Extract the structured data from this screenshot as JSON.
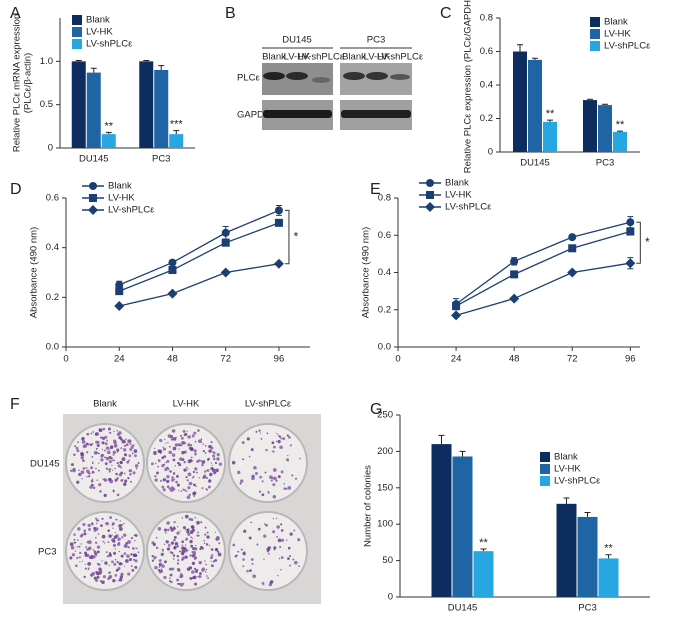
{
  "chart_data": [
    {
      "type": "bar",
      "panel": "A",
      "ylabel": [
        "Relative PLCε mRNA expression",
        "(PLCε/β-actin)"
      ],
      "categories": [
        "DU145",
        "PC3"
      ],
      "series": [
        {
          "name": "Blank",
          "color": "#0d2d5e",
          "values": [
            1.0,
            1.0
          ],
          "errors": [
            0.01,
            0.01
          ]
        },
        {
          "name": "LV-HK",
          "color": "#1f64a5",
          "values": [
            0.87,
            0.9
          ],
          "errors": [
            0.05,
            0.05
          ]
        },
        {
          "name": "LV-shPLCε",
          "color": "#27a7e1",
          "values": [
            0.16,
            0.16
          ],
          "errors": [
            0.02,
            0.04
          ]
        }
      ],
      "annotations": [
        {
          "text": "**",
          "category": 0,
          "series": 2
        },
        {
          "text": "***",
          "category": 1,
          "series": 2
        }
      ],
      "ylim": [
        0,
        1.5
      ],
      "yticks": [
        0,
        0.5,
        {
          "value": 1,
          "label": "1.0"
        }
      ]
    },
    {
      "type": "bar",
      "panel": "C",
      "ylabel": [
        "Relative PLCε expression (PLCε/GAPDH)"
      ],
      "categories": [
        "DU145",
        "PC3"
      ],
      "series": [
        {
          "name": "Blank",
          "color": "#0d2d5e",
          "values": [
            0.6,
            0.31
          ],
          "errors": [
            0.04,
            0.005
          ]
        },
        {
          "name": "LV-HK",
          "color": "#1f64a5",
          "values": [
            0.55,
            0.28
          ],
          "errors": [
            0.01,
            0.005
          ]
        },
        {
          "name": "LV-shPLCε",
          "color": "#27a7e1",
          "values": [
            0.18,
            0.12
          ],
          "errors": [
            0.01,
            0.005
          ]
        }
      ],
      "annotations": [
        {
          "text": "**",
          "category": 0,
          "series": 2
        },
        {
          "text": "**",
          "category": 1,
          "series": 2
        }
      ],
      "ylim": [
        0,
        0.8
      ],
      "yticks": [
        0,
        0.2,
        0.4,
        0.6,
        0.8
      ]
    },
    {
      "type": "line",
      "panel": "D",
      "ylabel": [
        "Absorbance (490 nm)"
      ],
      "x": [
        24,
        48,
        72,
        96
      ],
      "series": [
        {
          "name": "Blank",
          "color": "#1c3f73",
          "marker": "circle",
          "values": [
            0.25,
            0.34,
            0.46,
            0.55
          ],
          "errors": [
            0.015,
            0.008,
            0.025,
            0.02
          ]
        },
        {
          "name": "LV-HK",
          "color": "#1c3f73",
          "marker": "square",
          "values": [
            0.225,
            0.31,
            0.42,
            0.5
          ],
          "errors": [
            0.01,
            0.008,
            0.01,
            0.01
          ]
        },
        {
          "name": "LV-shPLCε",
          "color": "#1c3f73",
          "marker": "diamond",
          "values": [
            0.165,
            0.215,
            0.3,
            0.335
          ],
          "errors": [
            0.005,
            0.005,
            0.005,
            0.005
          ]
        }
      ],
      "annotations": [
        {
          "text": "*",
          "from": 0,
          "to": 2
        }
      ],
      "xlim": [
        0,
        110
      ],
      "xticks": [
        0,
        24,
        48,
        72,
        96
      ],
      "ylim": [
        0,
        0.6
      ],
      "yticks": [
        {
          "value": 0,
          "label": "0.0"
        },
        0.2,
        0.4,
        0.6
      ]
    },
    {
      "type": "line",
      "panel": "E",
      "ylabel": [
        "Absorbance (490 nm)"
      ],
      "x": [
        24,
        48,
        72,
        96
      ],
      "series": [
        {
          "name": "Blank",
          "color": "#1c3f73",
          "marker": "circle",
          "values": [
            0.23,
            0.46,
            0.59,
            0.67
          ],
          "errors": [
            0.03,
            0.02,
            0.01,
            0.03
          ]
        },
        {
          "name": "LV-HK",
          "color": "#1c3f73",
          "marker": "square",
          "values": [
            0.22,
            0.39,
            0.53,
            0.62
          ],
          "errors": [
            0.01,
            0.01,
            0.01,
            0.01
          ]
        },
        {
          "name": "LV-shPLCε",
          "color": "#1c3f73",
          "marker": "diamond",
          "values": [
            0.17,
            0.26,
            0.4,
            0.45
          ],
          "errors": [
            0.005,
            0.005,
            0.005,
            0.03
          ]
        }
      ],
      "annotations": [
        {
          "text": "*",
          "from": 0,
          "to": 2
        }
      ],
      "xlim": [
        0,
        100
      ],
      "xticks": [
        0,
        24,
        48,
        72,
        96
      ],
      "ylim": [
        0,
        0.8
      ],
      "yticks": [
        {
          "value": 0,
          "label": "0.0"
        },
        0.2,
        0.4,
        0.6,
        0.8
      ]
    },
    {
      "type": "bar",
      "panel": "G",
      "ylabel": [
        "Number of colonies"
      ],
      "categories": [
        "DU145",
        "PC3"
      ],
      "series": [
        {
          "name": "Blank",
          "color": "#0d2d5e",
          "values": [
            210,
            128
          ],
          "errors": [
            12,
            8
          ]
        },
        {
          "name": "LV-HK",
          "color": "#1f64a5",
          "values": [
            193,
            110
          ],
          "errors": [
            7,
            6
          ]
        },
        {
          "name": "LV-shPLCε",
          "color": "#27a7e1",
          "values": [
            63,
            53
          ],
          "errors": [
            3,
            5
          ]
        }
      ],
      "annotations": [
        {
          "text": "**",
          "category": 0,
          "series": 2
        },
        {
          "text": "**",
          "category": 1,
          "series": 2
        }
      ],
      "ylim": [
        0,
        250
      ],
      "yticks": [
        0,
        50,
        100,
        150,
        200,
        250
      ]
    }
  ],
  "blot": {
    "panel": "B",
    "cell_lines": [
      "DU145",
      "PC3"
    ],
    "lanes": [
      "Blank",
      "LV-HK",
      "LV-shPLCε",
      "Blank",
      "LV-HK",
      "LV-shPLCε"
    ],
    "rows": [
      "PLCε",
      "GAPDH"
    ]
  },
  "colonies": {
    "panel": "F",
    "columns": [
      "Blank",
      "LV-HK",
      "LV-shPLCε"
    ],
    "rows": [
      "DU145",
      "PC3"
    ]
  }
}
